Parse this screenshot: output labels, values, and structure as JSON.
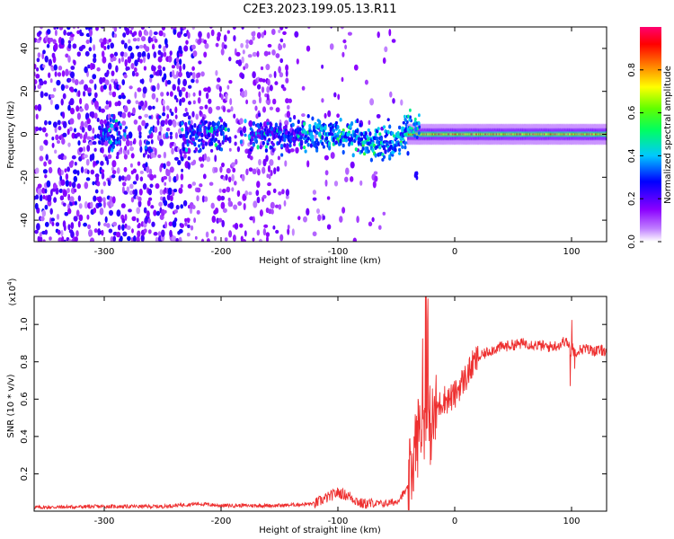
{
  "title": "C2E3.2023.199.05.13.R11",
  "colors": {
    "snr_line": "#ee2f2f",
    "background": "#ffffff",
    "axis": "#000000"
  },
  "colorbar": {
    "label": "Normalized spectral amplitude",
    "ticks": [
      "0.0",
      "0.2",
      "0.4",
      "0.6",
      "0.8"
    ],
    "range": [
      0.0,
      1.0
    ],
    "colormap": [
      "#ffffff",
      "#8b00ff",
      "#0000ff",
      "#00c8ff",
      "#00ff00",
      "#ffff00",
      "#ff8000",
      "#ff0000",
      "#ff0080"
    ]
  },
  "chart_data": [
    {
      "type": "heatmap",
      "name": "spectrogram",
      "xlabel": "Height of straight line (km)",
      "ylabel": "Frequency (Hz)",
      "xlim": [
        -360,
        130
      ],
      "ylim": [
        -50,
        50
      ],
      "xticks": [
        "-300",
        "-200",
        "-100",
        "0",
        "100"
      ],
      "yticks": [
        "-40",
        "-20",
        "0",
        "20",
        "40"
      ],
      "center_frequency": 0,
      "signal_onset_km": -40,
      "description_zones": [
        {
          "from": -360,
          "to": -225,
          "level": "noise-dense"
        },
        {
          "from": -225,
          "to": -140,
          "level": "noise-moderate"
        },
        {
          "from": -140,
          "to": -80,
          "level": "sparse"
        },
        {
          "from": -80,
          "to": -40,
          "level": "rising"
        },
        {
          "from": -40,
          "to": 130,
          "level": "strong"
        }
      ]
    },
    {
      "type": "line",
      "name": "snr",
      "xlabel": "Height of straight line (km)",
      "ylabel": "SNR (10 * v/v)",
      "scale_label": "(x10",
      "scale_exponent": "4",
      "scale_close": ")",
      "xlim": [
        -360,
        130
      ],
      "ylim": [
        0,
        1.15
      ],
      "xticks": [
        "-300",
        "-200",
        "-100",
        "0",
        "100"
      ],
      "yticks": [
        "0.2",
        "0.4",
        "0.6",
        "0.8",
        "1.0"
      ],
      "series": [
        {
          "name": "SNR",
          "x": [
            -360,
            -300,
            -250,
            -220,
            -200,
            -150,
            -120,
            -100,
            -90,
            -80,
            -60,
            -50,
            -40,
            -35,
            -30,
            -25,
            -20,
            -15,
            -10,
            -5,
            0,
            5,
            10,
            15,
            20,
            30,
            40,
            50,
            60,
            70,
            80,
            90,
            95,
            100,
            110,
            120,
            130
          ],
          "values": [
            0.02,
            0.025,
            0.025,
            0.04,
            0.03,
            0.03,
            0.04,
            0.1,
            0.08,
            0.04,
            0.04,
            0.05,
            0.12,
            0.3,
            0.45,
            0.5,
            0.45,
            0.55,
            0.6,
            0.6,
            0.62,
            0.68,
            0.72,
            0.78,
            0.82,
            0.86,
            0.88,
            0.89,
            0.9,
            0.89,
            0.88,
            0.89,
            0.92,
            0.85,
            0.87,
            0.86,
            0.86
          ]
        }
      ]
    }
  ]
}
